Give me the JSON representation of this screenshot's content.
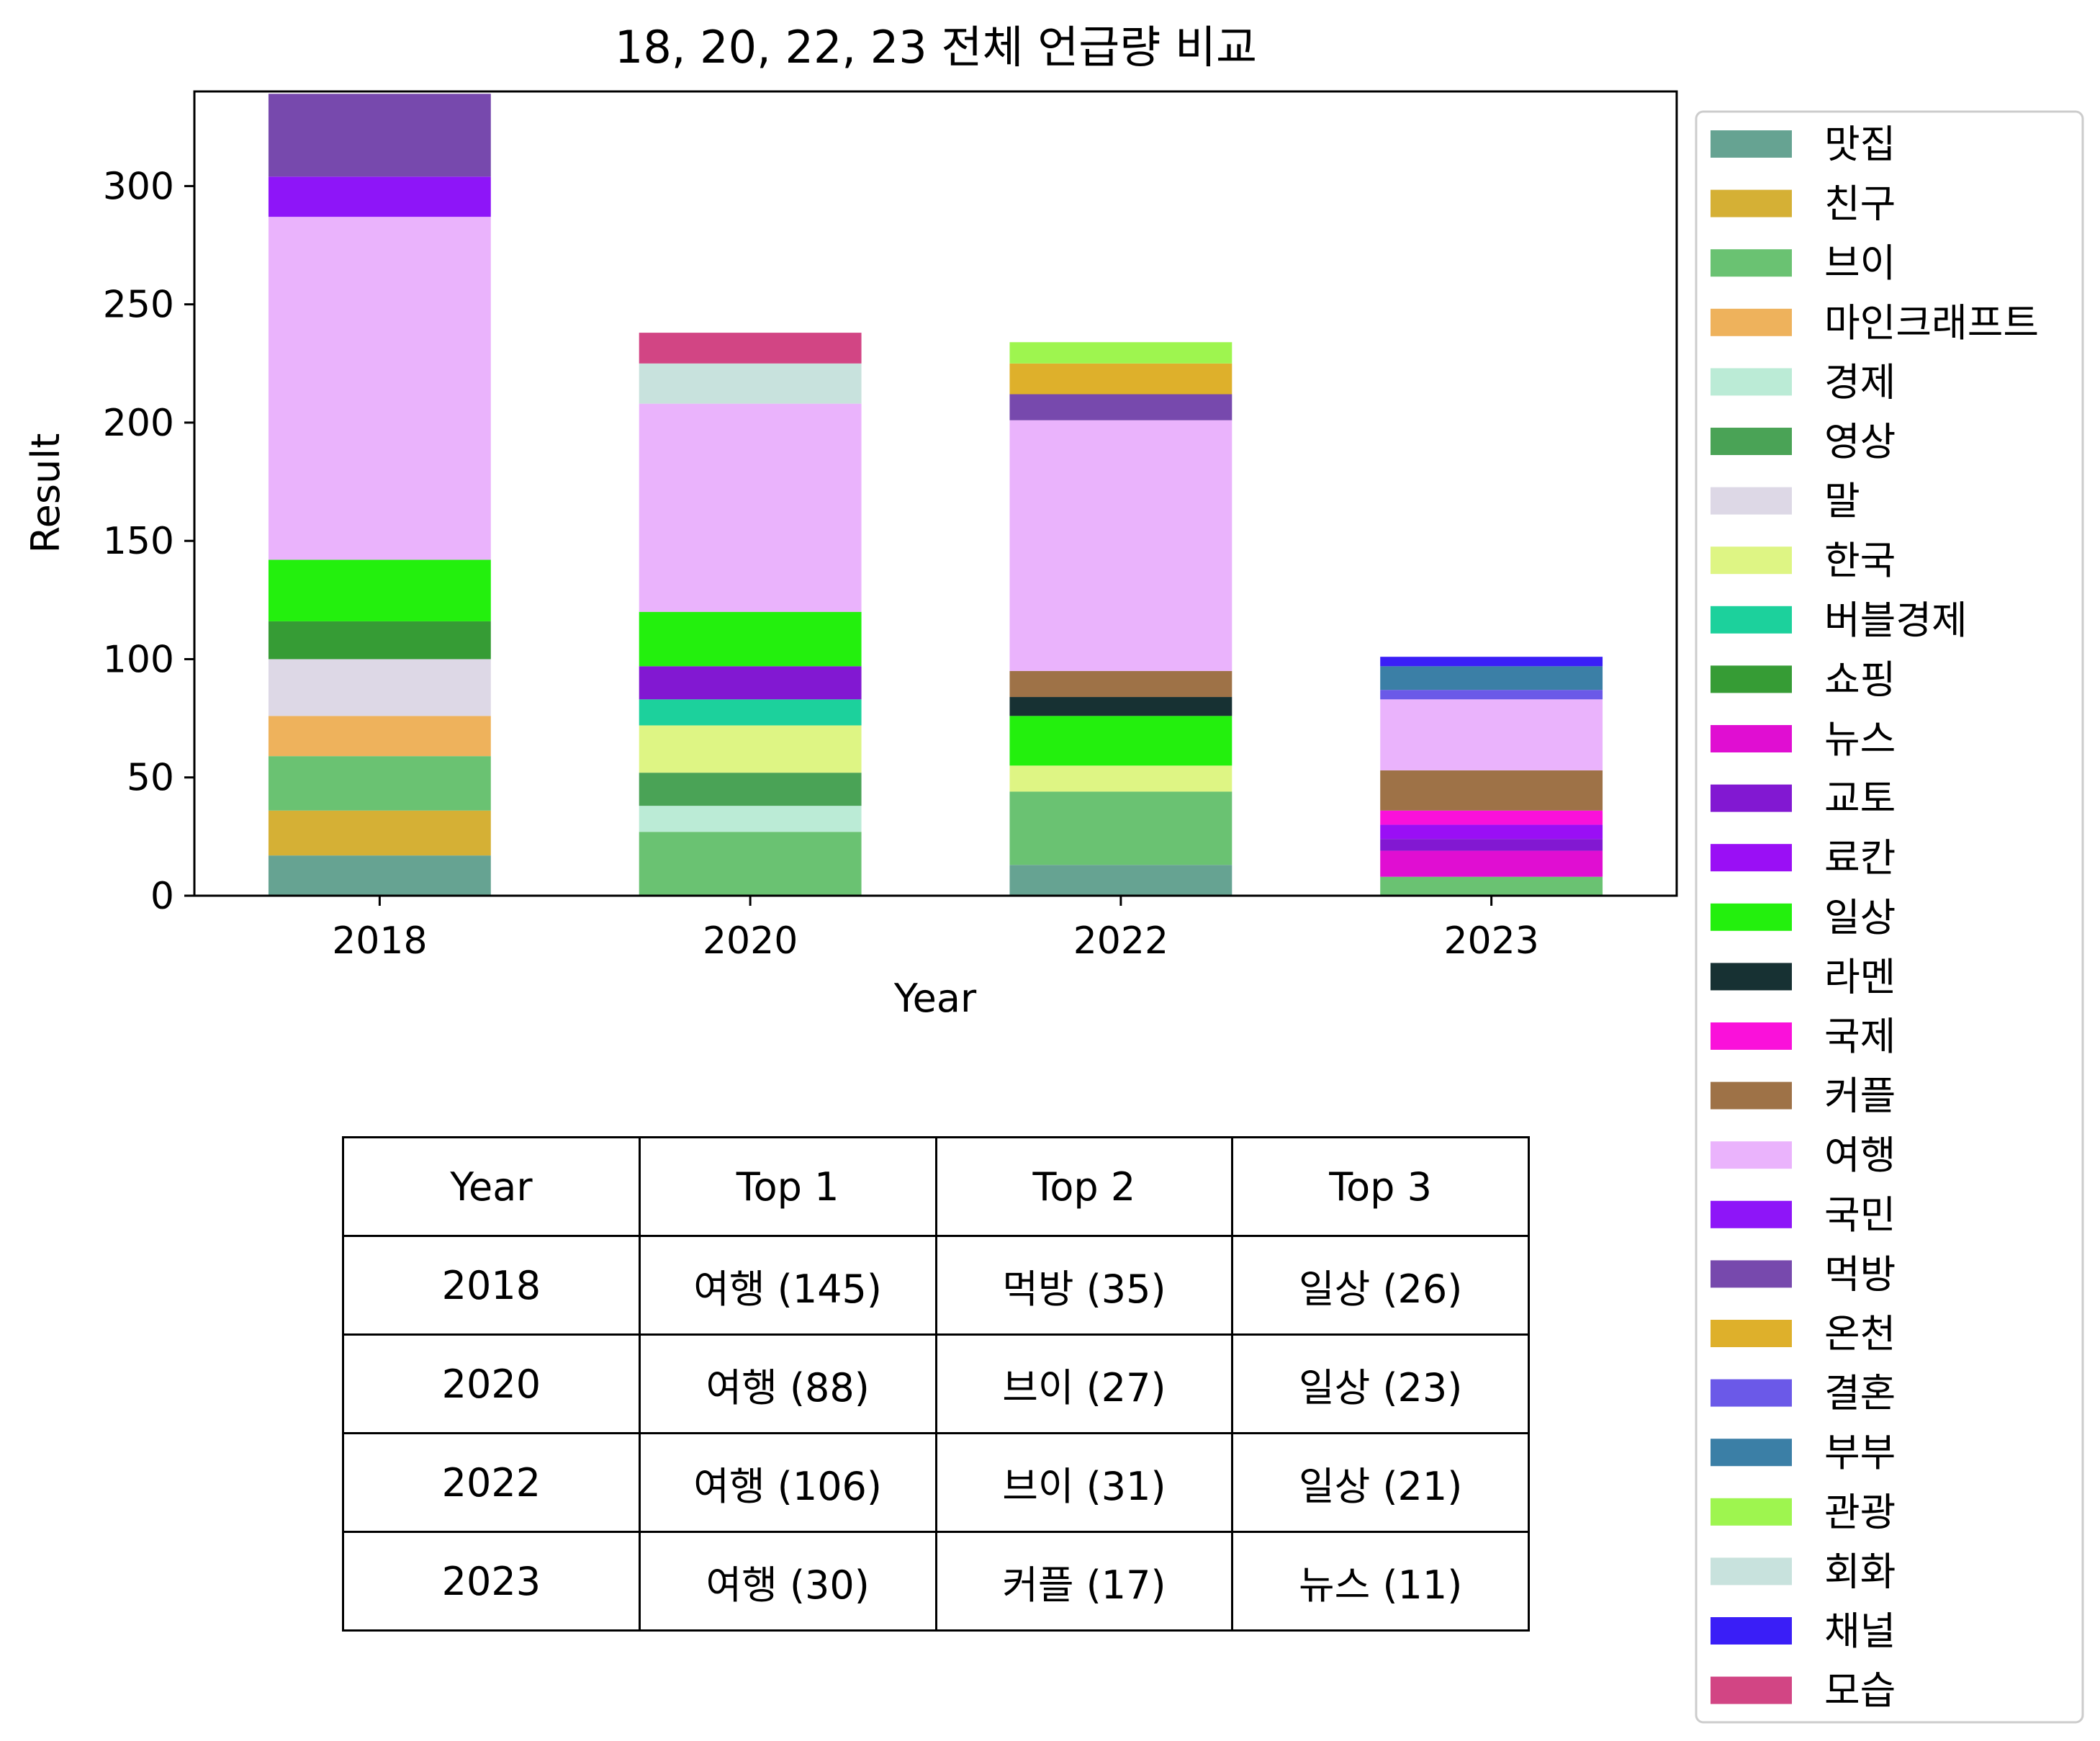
{
  "chart_data": {
    "type": "bar",
    "stacked": true,
    "title": "18, 20, 22, 23 전체 언급량 비교",
    "xlabel": "Year",
    "ylabel": "Result",
    "categories": [
      "2018",
      "2020",
      "2022",
      "2023"
    ],
    "ylim": [
      0,
      340
    ],
    "yticks": [
      0,
      50,
      100,
      150,
      200,
      250,
      300
    ],
    "legend_position": "outside-right",
    "grid": false,
    "series": [
      {
        "name": "맛집",
        "color": "#66a392",
        "values": [
          17,
          0,
          13,
          0
        ]
      },
      {
        "name": "친구",
        "color": "#d5b035",
        "values": [
          19,
          0,
          0,
          0
        ]
      },
      {
        "name": "브이",
        "color": "#6ac272",
        "values": [
          23,
          27,
          31,
          8
        ]
      },
      {
        "name": "마인크래프트",
        "color": "#eeb25c",
        "values": [
          17,
          0,
          0,
          0
        ]
      },
      {
        "name": "경제",
        "color": "#bbebd6",
        "values": [
          0,
          11,
          0,
          0
        ]
      },
      {
        "name": "영상",
        "color": "#4aa356",
        "values": [
          0,
          14,
          0,
          0
        ]
      },
      {
        "name": "말",
        "color": "#ddd8e6",
        "values": [
          24,
          0,
          0,
          0
        ]
      },
      {
        "name": "한국",
        "color": "#def584",
        "values": [
          0,
          20,
          11,
          0
        ]
      },
      {
        "name": "버블경제",
        "color": "#1cd19c",
        "values": [
          0,
          11,
          0,
          0
        ]
      },
      {
        "name": "쇼핑",
        "color": "#369c35",
        "values": [
          16,
          0,
          0,
          0
        ]
      },
      {
        "name": "뉴스",
        "color": "#e00ed2",
        "values": [
          0,
          0,
          0,
          11
        ]
      },
      {
        "name": "교토",
        "color": "#8218d2",
        "values": [
          0,
          14,
          0,
          5
        ]
      },
      {
        "name": "료칸",
        "color": "#9a0ff5",
        "values": [
          0,
          0,
          0,
          6
        ]
      },
      {
        "name": "일상",
        "color": "#23f00d",
        "values": [
          26,
          23,
          21,
          0
        ]
      },
      {
        "name": "라멘",
        "color": "#173133",
        "values": [
          0,
          0,
          8,
          0
        ]
      },
      {
        "name": "국제",
        "color": "#fa11da",
        "values": [
          0,
          0,
          0,
          6
        ]
      },
      {
        "name": "커플",
        "color": "#9e7247",
        "values": [
          0,
          0,
          11,
          17
        ]
      },
      {
        "name": "여행",
        "color": "#eab3fc",
        "values": [
          145,
          88,
          106,
          30
        ]
      },
      {
        "name": "국민",
        "color": "#8e15f8",
        "values": [
          17,
          0,
          0,
          0
        ]
      },
      {
        "name": "먹방",
        "color": "#7749ad",
        "values": [
          35,
          0,
          11,
          0
        ]
      },
      {
        "name": "온천",
        "color": "#deb02b",
        "values": [
          0,
          0,
          13,
          0
        ]
      },
      {
        "name": "결혼",
        "color": "#6b59e8",
        "values": [
          0,
          0,
          0,
          4
        ]
      },
      {
        "name": "부부",
        "color": "#3b7fa6",
        "values": [
          0,
          0,
          0,
          10
        ]
      },
      {
        "name": "관광",
        "color": "#9ef54f",
        "values": [
          0,
          0,
          9,
          0
        ]
      },
      {
        "name": "회화",
        "color": "#c8e2dd",
        "values": [
          0,
          17,
          0,
          0
        ]
      },
      {
        "name": "채널",
        "color": "#3a1ef7",
        "values": [
          0,
          0,
          0,
          4
        ]
      },
      {
        "name": "모습",
        "color": "#d24584",
        "values": [
          0,
          13,
          0,
          0
        ]
      }
    ]
  },
  "table": {
    "headers": [
      "Year",
      "Top 1",
      "Top 2",
      "Top 3"
    ],
    "rows": [
      [
        "2018",
        "여행 (145)",
        "먹방 (35)",
        "일상 (26)"
      ],
      [
        "2020",
        "여행 (88)",
        "브이 (27)",
        "일상 (23)"
      ],
      [
        "2022",
        "여행 (106)",
        "브이 (31)",
        "일상 (21)"
      ],
      [
        "2023",
        "여행 (30)",
        "커플 (17)",
        "뉴스 (11)"
      ]
    ]
  }
}
